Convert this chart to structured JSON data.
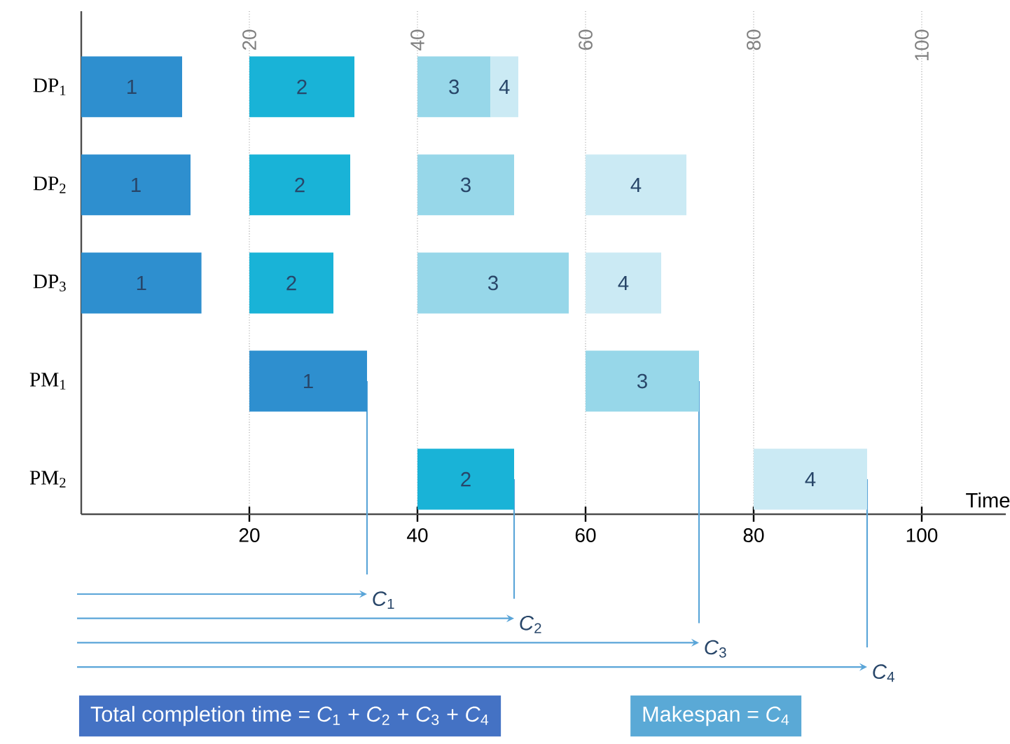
{
  "chart_data": {
    "type": "bar",
    "orientation": "horizontal",
    "xlabel": "Time",
    "categories": [
      "DP$_{1}$",
      "DP$_{2}$",
      "DP$_{3}$",
      "PM$_{1}$",
      "PM$_{2}$"
    ],
    "series": [
      {
        "name": "1",
        "color": "#2e8fcf",
        "base": [
          0,
          0,
          0,
          20,
          null
        ],
        "values": [
          12,
          13,
          14.3,
          14,
          null
        ]
      },
      {
        "name": "2",
        "color": "#19b3d7",
        "base": [
          20,
          20,
          20,
          null,
          40
        ],
        "values": [
          12.5,
          12,
          10,
          null,
          11.5
        ]
      },
      {
        "name": "3",
        "color": "#97d7e9",
        "base": [
          40,
          40,
          40,
          60,
          null
        ],
        "values": [
          8.7,
          11.5,
          18,
          13.5,
          null
        ]
      },
      {
        "name": "4",
        "color": "#cbeaf4",
        "base": [
          48.7,
          60,
          60,
          null,
          80
        ],
        "values": [
          3.3,
          12,
          9,
          null,
          13.5
        ]
      }
    ],
    "xlim": [
      0,
      110
    ],
    "xticks": [
      20,
      40,
      60,
      80,
      100
    ],
    "x2lim": [
      0,
      110
    ],
    "x2ticks": [
      20,
      40,
      60,
      80,
      100
    ],
    "grid": "x",
    "annotations": [
      {
        "text": "*C*$_{1}$",
        "x": 34,
        "y": "PM$_{1}$"
      },
      {
        "text": "*C*$_{2}$",
        "x": 51.5,
        "y": "PM$_{2}$"
      },
      {
        "text": "*C*$_{3}$",
        "x": 73.5,
        "y": "PM$_{1}$"
      },
      {
        "text": "*C*$_{4}$",
        "x": 93.5,
        "y": "PM$_{2}$"
      },
      "Total completion time = *C*$_{1}$ + *C*$_{2}$ + *C*$_{3}$ + *C*$_{4}$",
      "Makespan = *C*$_{4}$"
    ]
  }
}
